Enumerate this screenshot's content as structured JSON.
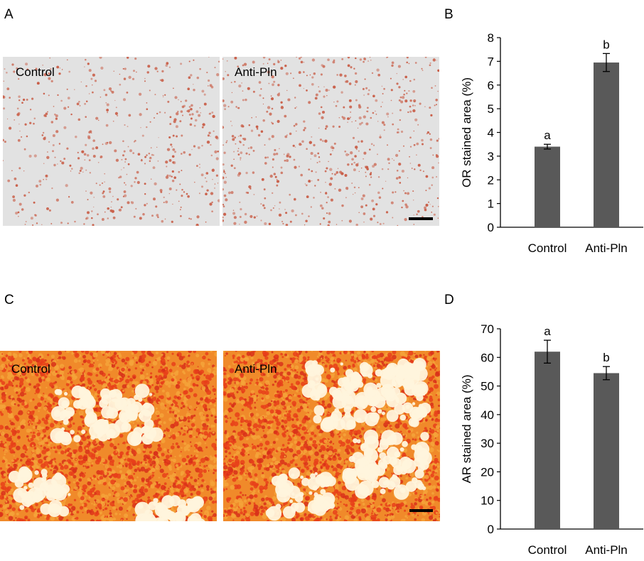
{
  "panels": {
    "a": {
      "letter": "A",
      "left_label": "Control",
      "right_label": "Anti-Pln",
      "stain_color": "#c9604a",
      "background_color": "#e2e2e2"
    },
    "b": {
      "letter": "B"
    },
    "c": {
      "letter": "C",
      "left_label": "Control",
      "right_label": "Anti-Pln",
      "stain_color": "#e8401a",
      "background_color": "#fff4dc"
    },
    "d": {
      "letter": "D"
    }
  },
  "chart_data": [
    {
      "type": "bar",
      "categories": [
        "Control",
        "Anti-Pln"
      ],
      "values": [
        3.4,
        6.95
      ],
      "errors": [
        0.1,
        0.38
      ],
      "annotations": [
        "a",
        "b"
      ],
      "ylabel": "OR stained area (%)",
      "ylim": [
        0,
        8
      ],
      "yticks": [
        0,
        1,
        2,
        3,
        4,
        5,
        6,
        7,
        8
      ],
      "grid": false,
      "bar_color": "#595959"
    },
    {
      "type": "bar",
      "categories": [
        "Control",
        "Anti-Pln"
      ],
      "values": [
        62,
        54.5
      ],
      "errors": [
        4,
        2.3
      ],
      "annotations": [
        "a",
        "b"
      ],
      "ylabel": "AR stained area (%)",
      "ylim": [
        0,
        70
      ],
      "yticks": [
        0,
        10,
        20,
        30,
        40,
        50,
        60,
        70
      ],
      "grid": false,
      "bar_color": "#595959"
    }
  ]
}
